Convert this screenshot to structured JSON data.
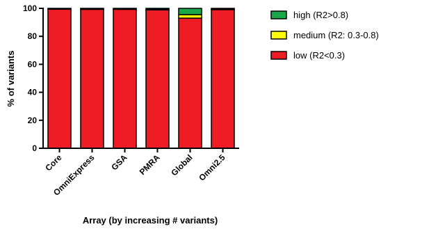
{
  "chart_data": {
    "type": "bar",
    "stacked": true,
    "categories": [
      "Core",
      "OmniExpress",
      "GSA",
      "PMRA",
      "Global",
      "Omni2.5"
    ],
    "series": [
      {
        "name": "low (R2<0.3)",
        "color": "#ee1c25",
        "values": [
          99.4,
          99.3,
          99.3,
          98.9,
          93.0,
          99.1
        ]
      },
      {
        "name": "medium (R2: 0.3-0.8)",
        "color": "#ffff00",
        "values": [
          0.3,
          0.3,
          0.3,
          0.5,
          2.5,
          0.4
        ]
      },
      {
        "name": "high (R2>0.8)",
        "color": "#1aa64a",
        "values": [
          0.3,
          0.4,
          0.4,
          0.6,
          4.5,
          0.5
        ]
      }
    ],
    "legend_order": [
      "high (R2>0.8)",
      "medium (R2: 0.3-0.8)",
      "low (R2<0.3)"
    ],
    "legend_position": "top-right",
    "ylabel": "% of variants",
    "xlabel": "Array (by increasing # variants)",
    "ylim": [
      0,
      100
    ],
    "yticks": [
      0,
      20,
      40,
      60,
      80,
      100
    ],
    "grid": false
  }
}
